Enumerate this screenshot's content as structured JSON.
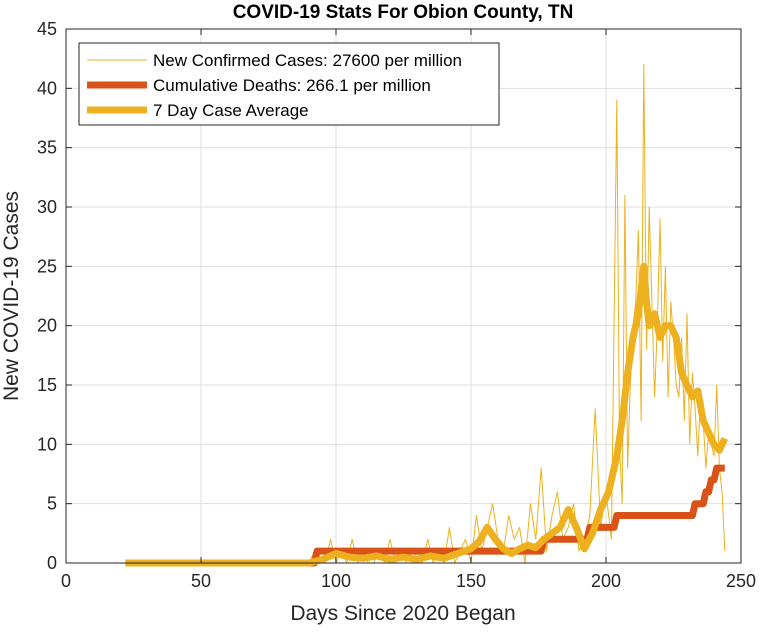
{
  "chart_data": {
    "type": "line",
    "title": "COVID-19 Stats For Obion County, TN",
    "xlabel": "Days Since 2020 Began",
    "ylabel": "New COVID-19 Cases",
    "xlim": [
      0,
      250
    ],
    "ylim": [
      0,
      45
    ],
    "xticks": [
      "0",
      "50",
      "100",
      "150",
      "200",
      "250"
    ],
    "yticks": [
      "0",
      "5",
      "10",
      "15",
      "20",
      "25",
      "30",
      "35",
      "40",
      "45"
    ],
    "grid": true,
    "legend_position": "top-left",
    "series": [
      {
        "name": "New Confirmed Cases: 27600 per million",
        "color": "#EDB120",
        "x": [
          22,
          90,
          92,
          94,
          96,
          98,
          100,
          102,
          104,
          106,
          108,
          110,
          112,
          114,
          116,
          118,
          120,
          122,
          124,
          126,
          128,
          130,
          132,
          134,
          136,
          138,
          140,
          142,
          144,
          146,
          148,
          150,
          152,
          154,
          156,
          158,
          160,
          162,
          164,
          166,
          168,
          170,
          172,
          174,
          176,
          178,
          180,
          182,
          184,
          186,
          188,
          190,
          192,
          194,
          196,
          198,
          200,
          202,
          204,
          205,
          206,
          207,
          208,
          209,
          210,
          211,
          212,
          213,
          214,
          215,
          216,
          217,
          218,
          219,
          220,
          221,
          222,
          223,
          224,
          225,
          226,
          227,
          228,
          229,
          230,
          231,
          232,
          233,
          234,
          235,
          236,
          237,
          238,
          239,
          240,
          241,
          242,
          243,
          244
        ],
        "values": [
          0,
          0,
          1,
          0,
          0,
          2,
          0,
          1,
          0,
          2,
          0,
          1,
          0,
          0,
          1,
          0,
          2,
          0,
          1,
          0,
          0,
          1,
          0,
          2,
          0,
          1,
          0,
          3,
          0,
          1,
          2,
          0,
          4,
          1,
          3,
          5,
          2,
          1,
          4,
          2,
          3,
          0,
          5,
          2,
          8,
          1,
          4,
          6,
          2,
          3,
          5,
          1,
          2,
          4,
          13,
          3,
          6,
          2,
          39,
          10,
          5,
          31,
          8,
          15,
          20,
          22,
          28,
          12,
          42,
          18,
          30,
          22,
          14,
          20,
          29,
          17,
          25,
          14,
          22,
          19,
          15,
          14,
          19,
          12,
          21,
          10,
          16,
          13,
          9,
          14,
          12,
          8,
          11,
          10,
          9,
          15,
          8,
          6,
          1
        ]
      },
      {
        "name": "Cumulative Deaths: 266.1 per million",
        "color": "#D95319",
        "x": [
          22,
          92,
          93,
          176,
          177,
          193,
          194,
          203,
          204,
          232,
          233,
          236,
          237,
          238,
          239,
          240,
          241,
          242,
          243,
          244
        ],
        "values": [
          0,
          0,
          1,
          1,
          2,
          2,
          3,
          3,
          4,
          4,
          5,
          5,
          6,
          6,
          7,
          7,
          8,
          8,
          8,
          8
        ]
      },
      {
        "name": "7 Day Case Average",
        "color": "#EDB120",
        "x": [
          22,
          90,
          95,
          100,
          105,
          110,
          115,
          120,
          125,
          130,
          135,
          140,
          145,
          150,
          153,
          156,
          159,
          162,
          165,
          168,
          171,
          174,
          177,
          180,
          183,
          186,
          189,
          192,
          195,
          198,
          201,
          204,
          206,
          208,
          210,
          212,
          213,
          214,
          215,
          216,
          218,
          220,
          222,
          224,
          226,
          228,
          230,
          232,
          234,
          236,
          238,
          240,
          242,
          244
        ],
        "values": [
          0,
          0,
          0.3,
          0.8,
          0.5,
          0.4,
          0.6,
          0.3,
          0.5,
          0.3,
          0.6,
          0.4,
          0.8,
          1.2,
          1.8,
          3,
          2,
          1.2,
          0.8,
          1.2,
          1.5,
          1.3,
          2,
          2.5,
          3,
          4.5,
          3,
          1.2,
          2.5,
          4.5,
          6,
          9,
          12,
          16,
          19,
          21,
          23,
          25,
          22,
          20,
          21,
          19,
          20,
          20,
          19,
          16,
          15,
          14,
          14.5,
          12,
          11,
          10,
          9.5,
          10.5
        ]
      }
    ]
  }
}
